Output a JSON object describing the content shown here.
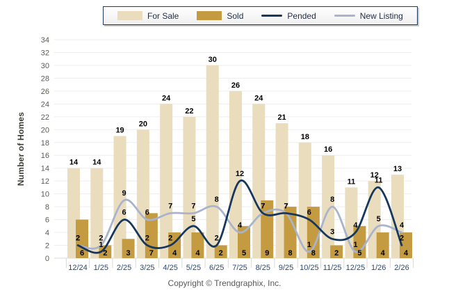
{
  "legend": {
    "items": [
      {
        "label": "For Sale"
      },
      {
        "label": "Sold"
      },
      {
        "label": "Pended"
      },
      {
        "label": "New Listing"
      }
    ]
  },
  "chart_data": {
    "type": "combo bar + line",
    "title": "",
    "xlabel": "",
    "ylabel": "Number of Homes",
    "ylim": [
      0,
      34
    ],
    "ytick_step": 2,
    "grid": true,
    "legend_position": "top",
    "categories": [
      "12/24",
      "1/25",
      "2/25",
      "3/25",
      "4/25",
      "5/25",
      "6/25",
      "7/25",
      "8/25",
      "9/25",
      "10/25",
      "11/25",
      "12/25",
      "1/26",
      "2/26"
    ],
    "series": [
      {
        "name": "For Sale",
        "type": "bar",
        "color": "#EADDBE",
        "values": [
          14,
          14,
          19,
          20,
          24,
          22,
          30,
          26,
          24,
          21,
          18,
          16,
          11,
          12,
          13
        ],
        "label_position": "above-bar"
      },
      {
        "name": "Sold",
        "type": "bar",
        "color": "#C49B40",
        "values": [
          6,
          2,
          3,
          7,
          4,
          4,
          2,
          5,
          9,
          8,
          8,
          2,
          5,
          4,
          4
        ],
        "label_position": "bar-bottom"
      },
      {
        "name": "Pended",
        "type": "line",
        "color": "#17375D",
        "values": [
          2,
          1,
          6,
          2,
          2,
          5,
          2,
          12,
          7,
          7,
          6,
          3,
          4,
          11,
          2
        ],
        "label_position": "above-point"
      },
      {
        "name": "New Listing",
        "type": "line",
        "color": "#A9B4CC",
        "values": [
          2,
          2,
          9,
          6,
          7,
          7,
          8,
          4,
          7,
          7,
          1,
          8,
          1,
          5,
          4
        ],
        "label_position": "above-point"
      }
    ],
    "style": {
      "gridline_color": "#ededed",
      "axis_color": "#d9d9d9",
      "ytick_label_color": "#5c5b52",
      "xtick_label_color": "#2b4a73",
      "data_label_color": "#000000"
    }
  },
  "footer": {
    "copyright": "Copyright © Trendgraphix, Inc."
  }
}
